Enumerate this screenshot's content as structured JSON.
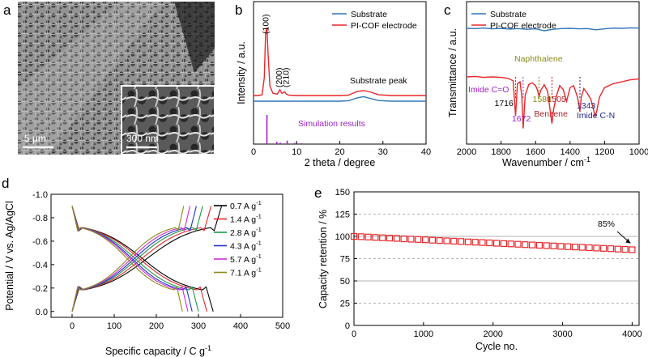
{
  "panels": {
    "a": {
      "label": "a",
      "scalebar_main": "5 μm",
      "scalebar_inset": "300 nm",
      "colors": {
        "background": "#5a5a5a",
        "foam": "#b8b8b8",
        "dark": "#2a2a2a"
      }
    },
    "b": {
      "label": "b"
    },
    "c": {
      "label": "c"
    },
    "d": {
      "label": "d"
    },
    "e": {
      "label": "e"
    }
  },
  "chart_data": [
    {
      "panel": "b",
      "type": "line",
      "xlabel": "2 theta / degree",
      "ylabel": "Intensity / a.u.",
      "xlim": [
        0,
        40
      ],
      "xticks": [
        0,
        10,
        20,
        30,
        40
      ],
      "series": [
        {
          "name": "Substrate",
          "color": "#2e75b6",
          "x": [
            0,
            3,
            6,
            10,
            15,
            20,
            22,
            24,
            25.5,
            27,
            29,
            32,
            40
          ],
          "y": [
            1.0,
            1.0,
            1.0,
            1.0,
            1.0,
            1.0,
            1.04,
            1.25,
            1.35,
            1.22,
            1.05,
            1.0,
            1.0
          ]
        },
        {
          "name": "PI-COF electrode",
          "color": "#e8262b",
          "x": [
            0,
            1,
            2,
            2.5,
            2.8,
            3.1,
            3.4,
            3.8,
            4.5,
            5.5,
            6.1,
            6.6,
            7.2,
            7.6,
            8.2,
            10,
            15,
            20,
            22,
            24,
            25.5,
            27,
            29,
            32,
            40
          ],
          "y": [
            0.5,
            0.5,
            0.6,
            3.0,
            9.2,
            9.9,
            6.0,
            1.8,
            0.8,
            0.7,
            1.3,
            0.8,
            1.0,
            0.7,
            0.55,
            0.5,
            0.5,
            0.5,
            0.55,
            1.05,
            1.2,
            1.0,
            0.6,
            0.5,
            0.5
          ]
        }
      ],
      "peak_labels": [
        {
          "text": "(100)",
          "x": 3.1
        },
        {
          "text": "(200)",
          "x": 6.2
        },
        {
          "text": "(210)",
          "x": 7.8
        }
      ],
      "annotations": {
        "substrate_peak": "Substrate peak",
        "simulation": "Simulation results"
      },
      "simulation_sticks": {
        "color": "#9b22c8",
        "x": [
          3.1,
          5.4,
          6.2,
          7.8,
          9.5,
          11.2
        ],
        "h": [
          1.0,
          0.08,
          0.05,
          0.12,
          0.04,
          0.03
        ]
      }
    },
    {
      "panel": "c",
      "type": "line",
      "xlabel": "Wavenumber / cm",
      "xlabel_sup": "-1",
      "ylabel": "Transmittance / a.u.",
      "xlim": [
        2000,
        1000
      ],
      "xticks": [
        2000,
        1800,
        1600,
        1400,
        1200,
        1000
      ],
      "series": [
        {
          "name": "Substrate",
          "color": "#2e75b6",
          "x": [
            2000,
            1950,
            1900,
            1850,
            1800,
            1750,
            1700,
            1650,
            1600,
            1550,
            1500,
            1450,
            1400,
            1350,
            1300,
            1250,
            1200,
            1150,
            1100,
            1050,
            1000
          ],
          "y": [
            9.8,
            9.75,
            9.85,
            9.7,
            9.8,
            9.65,
            9.75,
            9.6,
            9.7,
            9.3,
            9.6,
            9.75,
            9.8,
            9.7,
            9.75,
            9.5,
            9.7,
            9.85,
            9.8,
            9.9,
            9.85
          ]
        },
        {
          "name": "PI-COF electrode",
          "color": "#e8262b",
          "x": [
            2000,
            1950,
            1900,
            1850,
            1800,
            1760,
            1730,
            1716,
            1705,
            1690,
            1680,
            1672,
            1660,
            1640,
            1620,
            1600,
            1590,
            1580,
            1570,
            1550,
            1530,
            1515,
            1505,
            1495,
            1480,
            1460,
            1440,
            1420,
            1400,
            1380,
            1360,
            1350,
            1343,
            1335,
            1320,
            1300,
            1280,
            1265,
            1255,
            1245,
            1230,
            1200,
            1150,
            1100,
            1050,
            1000
          ],
          "y": [
            7.5,
            7.55,
            7.45,
            7.5,
            7.45,
            7.35,
            7.1,
            3.5,
            6.8,
            7.0,
            5.5,
            2.2,
            5.6,
            6.7,
            6.9,
            6.6,
            6.2,
            5.5,
            6.1,
            6.7,
            6.0,
            4.0,
            2.7,
            4.2,
            5.5,
            6.6,
            6.2,
            5.0,
            6.4,
            6.6,
            5.6,
            4.8,
            3.9,
            5.4,
            6.3,
            5.8,
            5.2,
            4.2,
            3.4,
            4.0,
            5.4,
            6.4,
            6.8,
            7.0,
            7.2,
            7.3
          ]
        }
      ],
      "annotations": [
        {
          "text": "Naphthalene",
          "color": "#8a8a1a"
        },
        {
          "text": "Imide C=O",
          "color": "#a020c8"
        },
        {
          "text": "1716",
          "color": "#000"
        },
        {
          "text": "1672",
          "color": "#a020c8"
        },
        {
          "text": "1580",
          "color": "#8a8a1a"
        },
        {
          "text": "1505",
          "color": "#b0222a"
        },
        {
          "text": "Benzene",
          "color": "#b0222a"
        },
        {
          "text": "1343",
          "color": "#1f2a8a"
        },
        {
          "text": "Imide C-N",
          "color": "#1f2a8a"
        }
      ],
      "markers": [
        {
          "x": 1716,
          "color": "#a020c8"
        },
        {
          "x": 1672,
          "color": "#a020c8"
        },
        {
          "x": 1580,
          "color": "#8a8a1a"
        },
        {
          "x": 1505,
          "color": "#b0222a"
        },
        {
          "x": 1343,
          "color": "#1f2a8a"
        }
      ]
    },
    {
      "panel": "d",
      "type": "line",
      "xlabel": "Specific capacity / C g",
      "xlabel_sup": "-1",
      "ylabel": "Potential / V vs. Ag/AgCl",
      "xlim": [
        -50,
        500
      ],
      "ylim": [
        0.05,
        -1.0
      ],
      "xticks": [
        0,
        100,
        200,
        300,
        400,
        500
      ],
      "yticks": [
        -1.0,
        -0.8,
        -0.6,
        -0.4,
        -0.2,
        0.0
      ],
      "ytick_labels": [
        "-1.0",
        "-0.8",
        "-0.6",
        "-0.4",
        "-0.2",
        "0.0"
      ],
      "series": [
        {
          "name": "0.7 A g",
          "sup": "-1",
          "color": "#000000",
          "charge_cap": 355,
          "discharge_cap": 335
        },
        {
          "name": "1.4 A g",
          "sup": "-1",
          "color": "#e8262b",
          "charge_cap": 330,
          "discharge_cap": 320
        },
        {
          "name": "2.8 A g",
          "sup": "-1",
          "color": "#1a9a4a",
          "charge_cap": 310,
          "discharge_cap": 300
        },
        {
          "name": "4.3 A g",
          "sup": "-1",
          "color": "#2233cc",
          "charge_cap": 295,
          "discharge_cap": 285
        },
        {
          "name": "5.7 A g",
          "sup": "-1",
          "color": "#d42bd4",
          "charge_cap": 280,
          "discharge_cap": 275
        },
        {
          "name": "7.1 A g",
          "sup": "-1",
          "color": "#8a8a1a",
          "charge_cap": 265,
          "discharge_cap": 262
        }
      ]
    },
    {
      "panel": "e",
      "type": "scatter",
      "xlabel": "Cycle no.",
      "ylabel": "Capacity retention / %",
      "xlim": [
        0,
        4100
      ],
      "ylim": [
        0,
        150
      ],
      "xticks": [
        0,
        1000,
        2000,
        3000,
        4000
      ],
      "yticks": [
        0,
        25,
        50,
        75,
        100,
        125,
        150
      ],
      "gridlines": [
        25,
        50,
        75,
        100,
        125
      ],
      "marker_color": "#e8262b",
      "start": 100,
      "end": 85,
      "n_points": 40,
      "annotation": "85%"
    }
  ]
}
